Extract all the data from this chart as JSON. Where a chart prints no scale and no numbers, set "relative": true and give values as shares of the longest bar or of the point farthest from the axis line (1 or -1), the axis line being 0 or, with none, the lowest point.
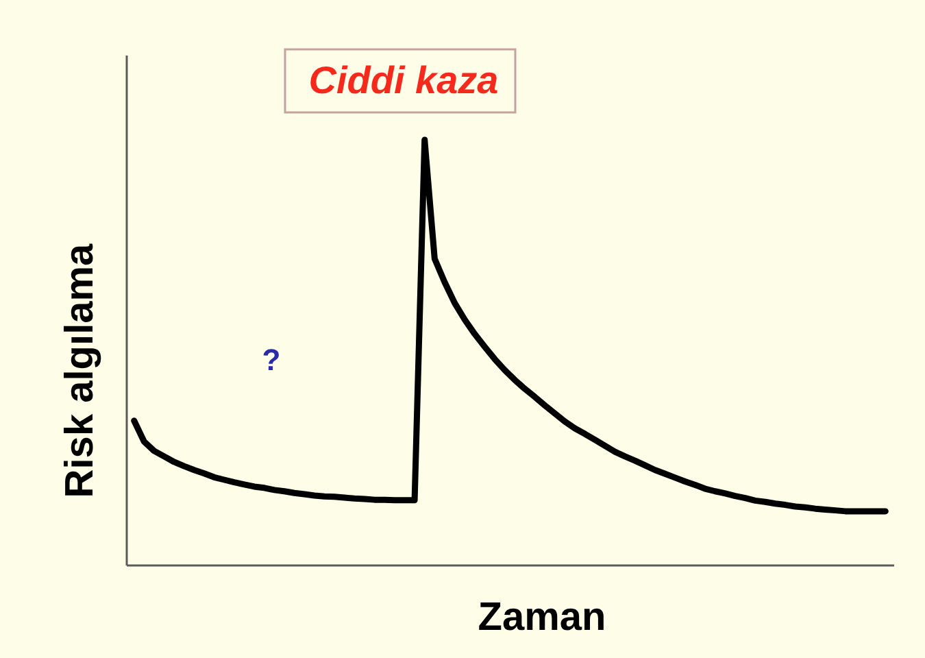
{
  "chart_data": {
    "type": "line",
    "xlabel": "Zaman",
    "ylabel": "Risk algılama",
    "relative": true,
    "tick_labels": false,
    "categories": [
      null,
      null,
      null,
      null,
      null,
      null,
      null,
      null,
      null,
      null,
      null,
      null,
      null,
      null,
      null,
      null,
      null,
      null,
      null,
      null,
      null,
      null,
      null,
      null,
      null,
      null,
      null,
      null,
      null,
      null,
      null,
      null,
      null,
      null,
      null,
      null,
      null,
      null,
      null,
      null,
      null,
      null,
      null,
      null,
      null,
      null,
      null,
      null,
      null,
      null,
      null,
      null,
      null,
      null,
      null,
      null,
      null,
      null,
      null,
      null,
      null,
      null,
      null,
      null,
      null,
      null,
      null,
      null,
      null,
      null,
      null,
      null,
      null,
      null,
      null,
      null
    ],
    "series": [
      {
        "color": "#000000",
        "values": [
          0.339,
          0.29,
          0.268,
          0.255,
          0.242,
          0.232,
          0.223,
          0.215,
          0.206,
          0.2,
          0.194,
          0.189,
          0.184,
          0.181,
          0.176,
          0.173,
          0.169,
          0.166,
          0.163,
          0.161,
          0.16,
          0.158,
          0.156,
          0.155,
          0.153,
          0.153,
          0.152,
          0.152,
          0.152,
          1.0,
          0.72,
          0.665,
          0.616,
          0.577,
          0.543,
          0.513,
          0.484,
          0.458,
          0.435,
          0.414,
          0.395,
          0.375,
          0.356,
          0.337,
          0.321,
          0.308,
          0.294,
          0.28,
          0.266,
          0.255,
          0.245,
          0.234,
          0.223,
          0.214,
          0.205,
          0.196,
          0.188,
          0.179,
          0.173,
          0.168,
          0.162,
          0.157,
          0.151,
          0.148,
          0.144,
          0.141,
          0.137,
          0.135,
          0.132,
          0.13,
          0.128,
          0.126,
          0.126,
          0.126,
          0.126,
          0.126
        ]
      }
    ],
    "annotations": [
      "Ciddi kaza",
      "?"
    ]
  }
}
